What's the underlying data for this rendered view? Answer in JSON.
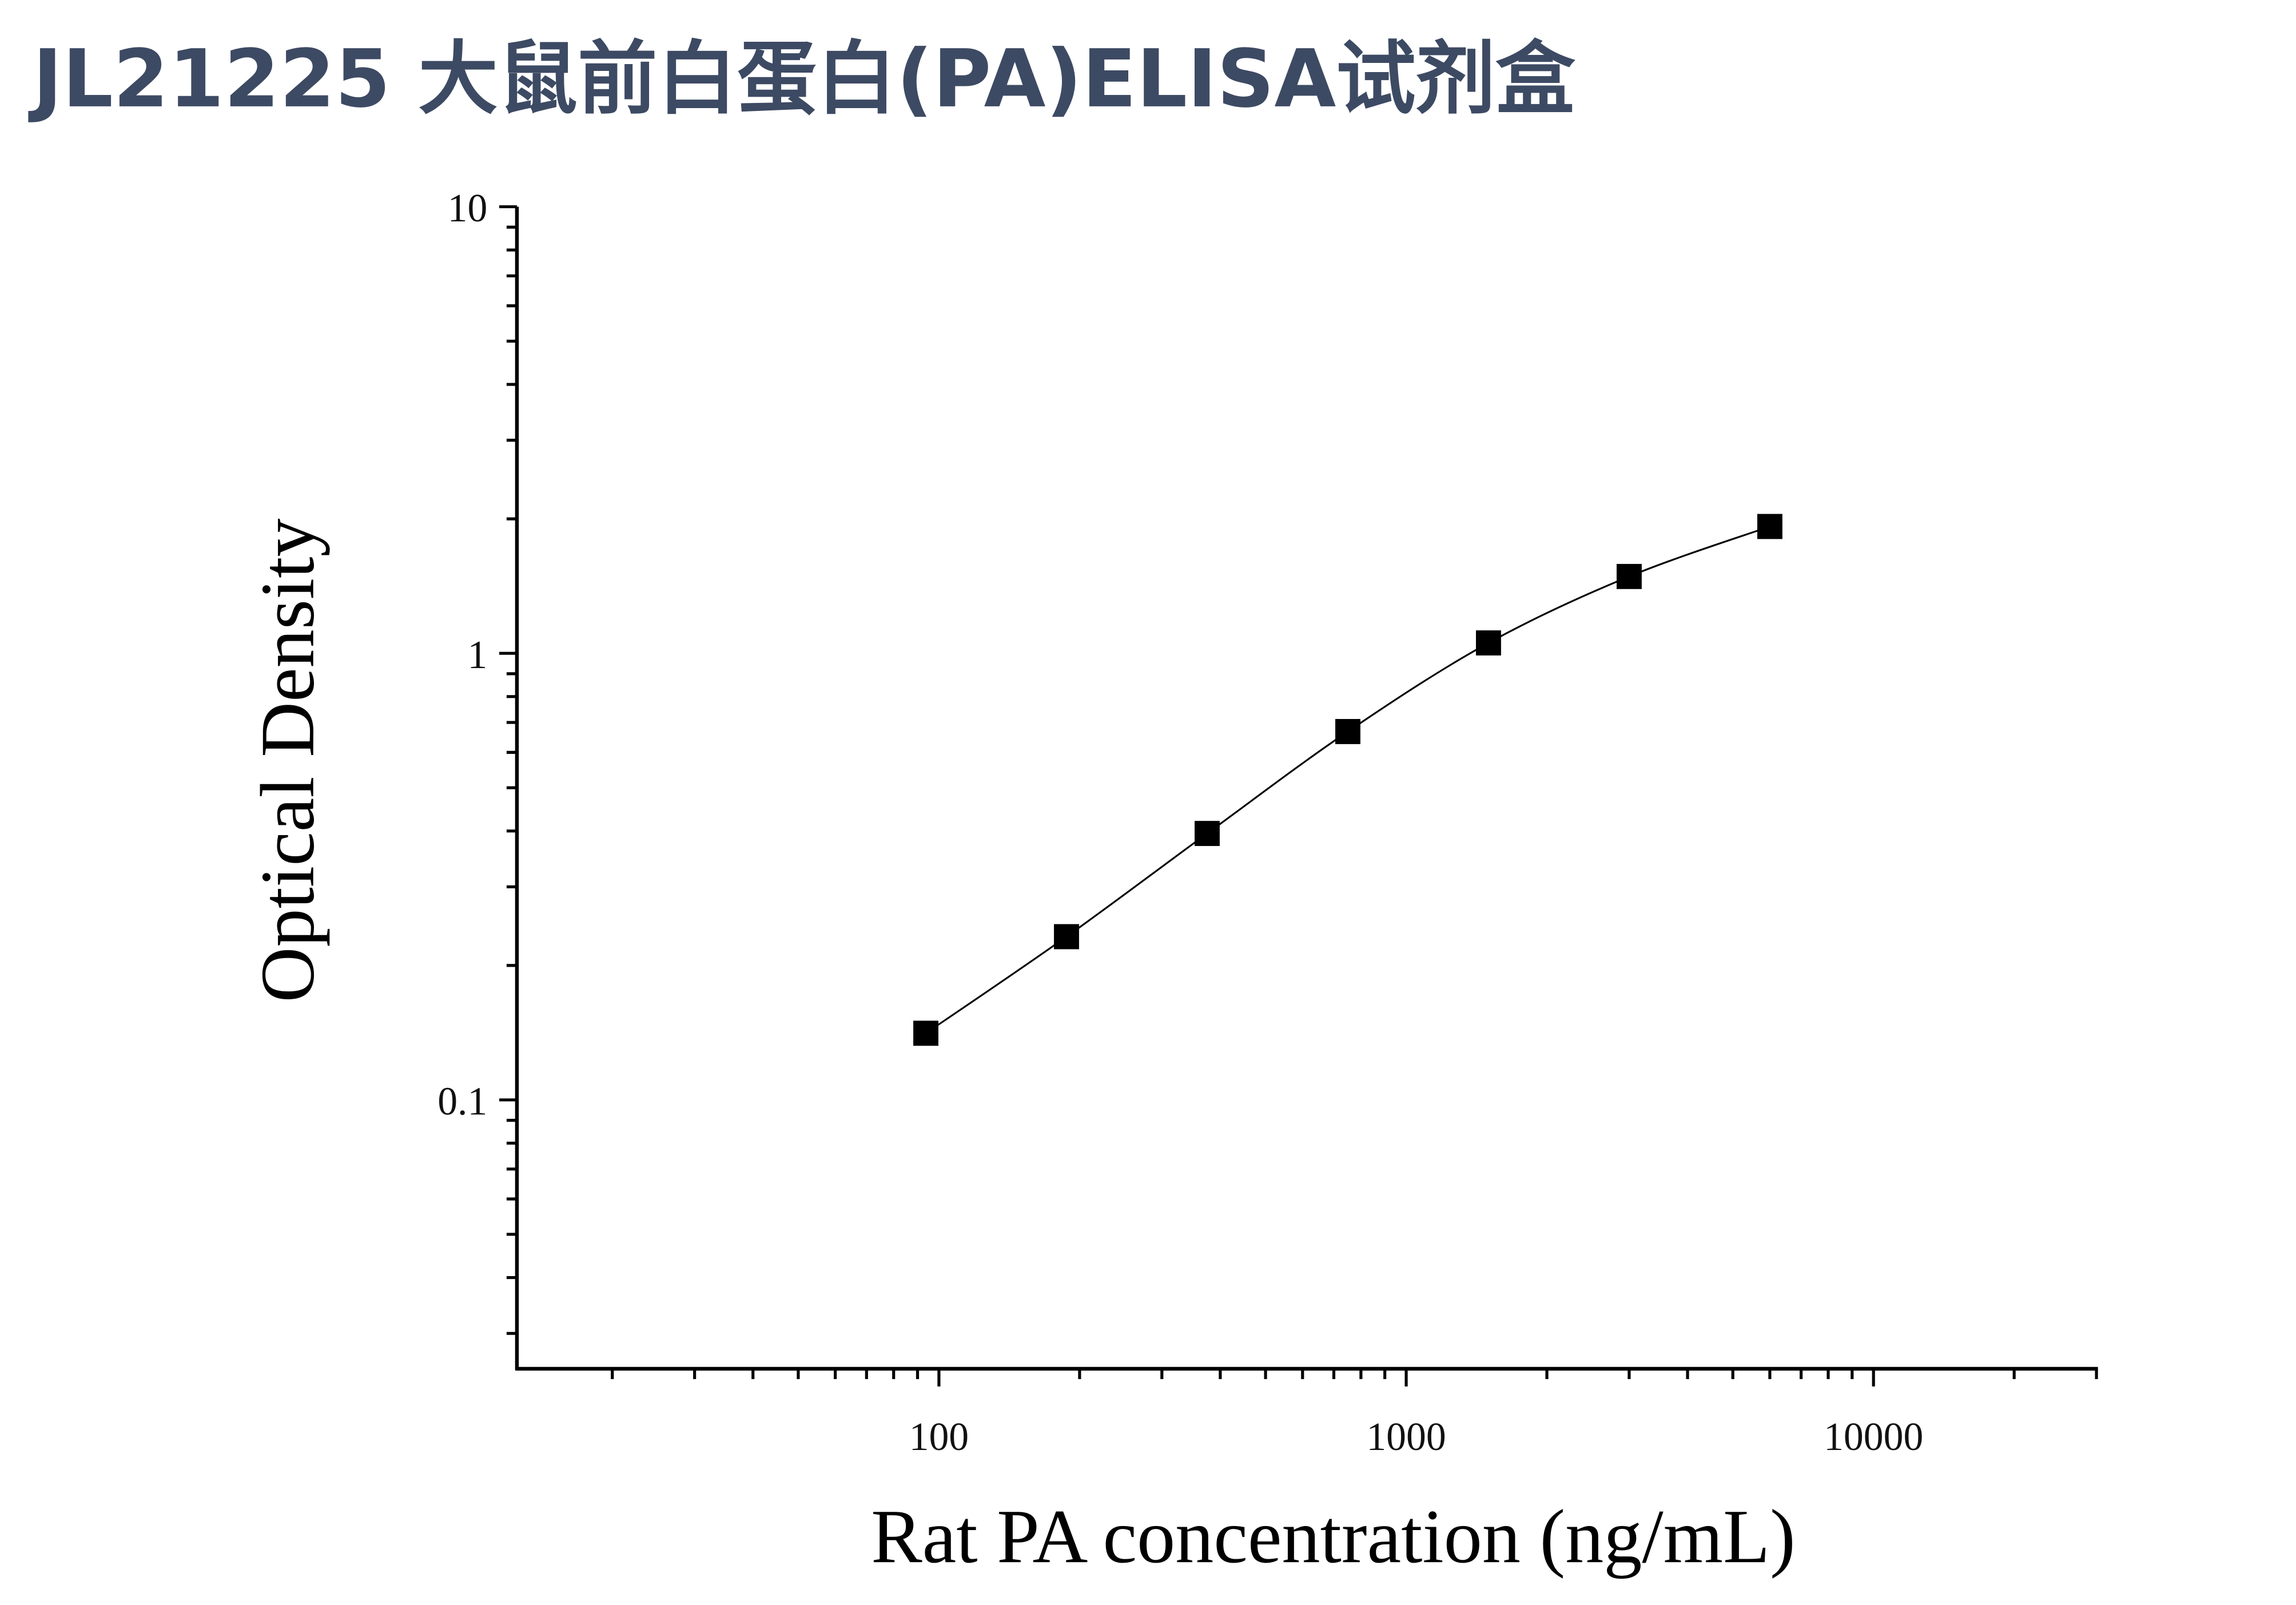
{
  "chart_data": {
    "type": "scatter",
    "title": "JL21225 大鼠前白蛋白(PA)ELISA试剂盒",
    "x_label": "Rat PA concentration (ng/mL)",
    "y_label": "Optical Density",
    "x": [
      93.75,
      187.5,
      375,
      750,
      1500,
      3000,
      6000
    ],
    "values": [
      0.141,
      0.232,
      0.395,
      0.668,
      1.055,
      1.486,
      1.923
    ],
    "color": "#000000",
    "x_log": true,
    "y_log": true,
    "fit_curve": true,
    "xlim": [
      12.5,
      30000
    ],
    "ylim": [
      0.025,
      10
    ],
    "xticks": [
      100,
      1000,
      10000
    ],
    "yticks": [
      0.1,
      1,
      10
    ]
  }
}
